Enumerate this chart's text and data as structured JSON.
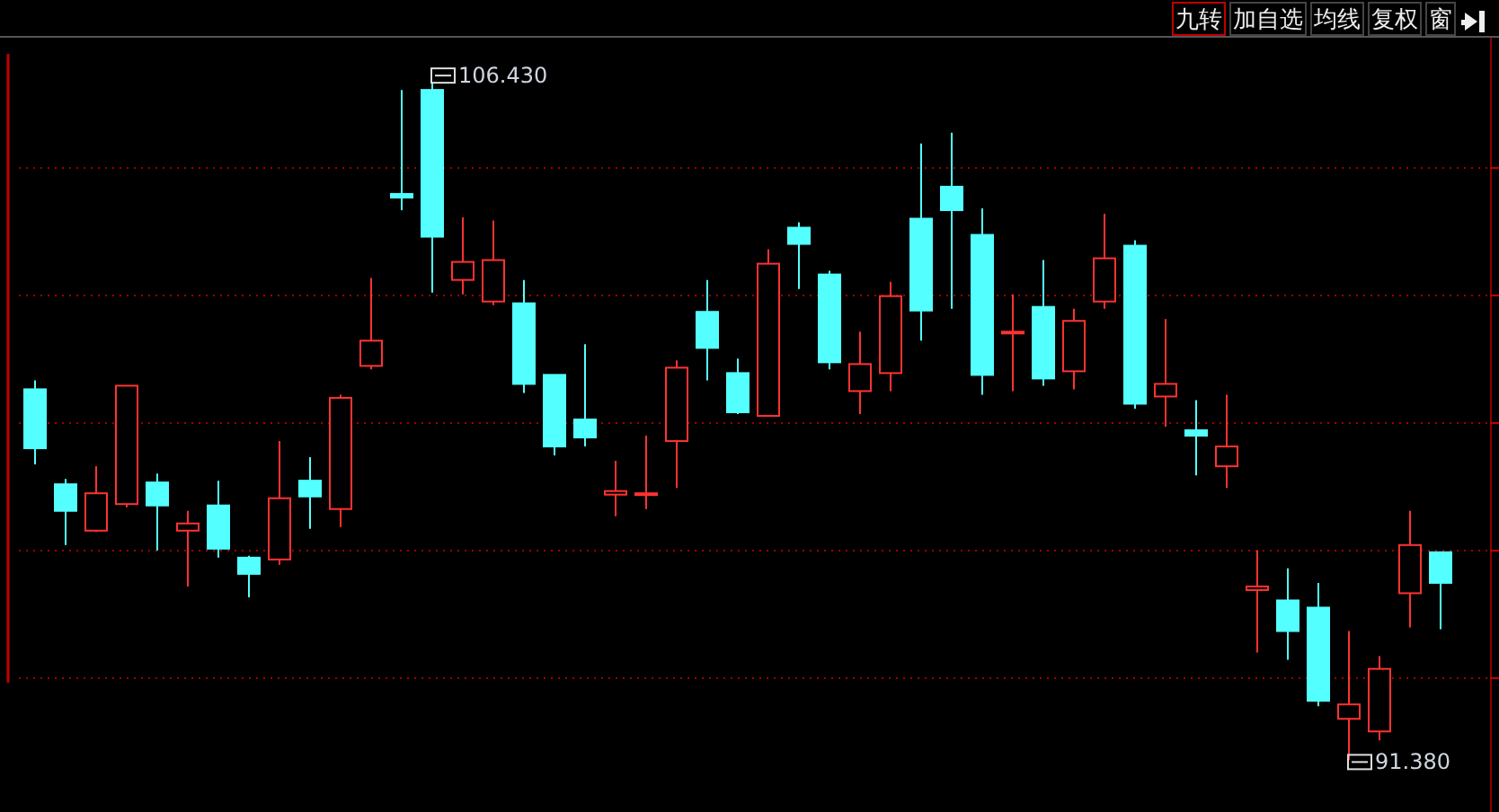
{
  "chart_data": {
    "type": "candlestick",
    "categories": [
      null,
      null,
      null,
      null,
      null,
      null,
      null,
      null,
      null,
      null,
      null,
      null,
      null,
      null,
      null,
      null,
      null,
      null,
      null,
      null,
      null,
      null,
      null,
      null,
      null,
      null,
      null,
      null,
      null,
      null,
      null,
      null,
      null,
      null,
      null,
      null,
      null,
      null,
      null,
      null,
      null,
      null,
      null,
      null,
      null,
      null,
      null
    ],
    "ohlc": [
      [
        99.62,
        99.82,
        97.95,
        98.31
      ],
      [
        97.51,
        97.63,
        96.16,
        96.92
      ],
      [
        96.48,
        97.91,
        96.45,
        97.31
      ],
      [
        97.07,
        99.7,
        97.0,
        99.7
      ],
      [
        97.55,
        97.75,
        96.04,
        97.04
      ],
      [
        96.48,
        96.92,
        95.24,
        96.64
      ],
      [
        97.04,
        97.59,
        95.88,
        96.08
      ],
      [
        95.88,
        95.92,
        95.0,
        95.52
      ],
      [
        95.84,
        98.47,
        95.72,
        97.2
      ],
      [
        97.59,
        98.11,
        96.52,
        97.24
      ],
      [
        96.96,
        99.5,
        96.56,
        99.43
      ],
      [
        100.14,
        102.09,
        100.06,
        100.7
      ],
      [
        103.96,
        106.27,
        103.6,
        103.88
      ],
      [
        106.27,
        106.43,
        101.77,
        103.01
      ],
      [
        102.05,
        103.44,
        101.73,
        102.45
      ],
      [
        101.57,
        103.37,
        101.49,
        102.49
      ],
      [
        101.53,
        102.05,
        99.54,
        99.74
      ],
      [
        99.94,
        99.94,
        98.15,
        98.35
      ],
      [
        98.95,
        100.62,
        98.35,
        98.55
      ],
      [
        97.28,
        98.03,
        96.8,
        97.36
      ],
      [
        97.28,
        98.59,
        96.96,
        97.31
      ],
      [
        98.47,
        100.26,
        97.43,
        100.1
      ],
      [
        101.34,
        102.05,
        99.82,
        100.54
      ],
      [
        99.98,
        100.3,
        99.07,
        99.11
      ],
      [
        99.03,
        102.73,
        99.03,
        102.41
      ],
      [
        103.21,
        103.33,
        101.85,
        102.85
      ],
      [
        102.17,
        102.25,
        100.06,
        100.22
      ],
      [
        99.58,
        100.9,
        99.07,
        100.18
      ],
      [
        99.98,
        102.01,
        99.58,
        101.69
      ],
      [
        103.41,
        105.08,
        100.7,
        101.37
      ],
      [
        104.12,
        105.32,
        101.41,
        103.6
      ],
      [
        103.05,
        103.64,
        99.5,
        99.94
      ],
      [
        100.9,
        101.73,
        99.58,
        100.9
      ],
      [
        101.45,
        102.49,
        99.7,
        99.86
      ],
      [
        100.02,
        101.41,
        99.62,
        101.14
      ],
      [
        101.57,
        103.52,
        101.41,
        102.53
      ],
      [
        102.81,
        102.93,
        99.19,
        99.3
      ],
      [
        99.46,
        101.18,
        98.79,
        99.74
      ],
      [
        98.71,
        99.38,
        97.71,
        98.59
      ],
      [
        97.91,
        99.5,
        97.43,
        98.35
      ],
      [
        95.16,
        96.04,
        93.77,
        95.24
      ],
      [
        94.93,
        95.64,
        93.61,
        94.25
      ],
      [
        94.77,
        95.32,
        92.58,
        92.7
      ],
      [
        92.3,
        94.25,
        91.38,
        92.62
      ],
      [
        92.02,
        93.69,
        91.82,
        93.41
      ],
      [
        95.09,
        96.92,
        94.33,
        96.16
      ],
      [
        96.0,
        96.0,
        94.29,
        95.32
      ]
    ],
    "colors": [
      "#54ffff",
      "#54ffff",
      "#ff3232",
      "#ff3232",
      "#54ffff",
      "#ff3232",
      "#54ffff",
      "#54ffff",
      "#ff3232",
      "#54ffff",
      "#ff3232",
      "#ff3232",
      "#54ffff",
      "#54ffff",
      "#ff3232",
      "#ff3232",
      "#54ffff",
      "#54ffff",
      "#54ffff",
      "#ff3232",
      "#ff3232",
      "#ff3232",
      "#54ffff",
      "#54ffff",
      "#ff3232",
      "#54ffff",
      "#54ffff",
      "#ff3232",
      "#ff3232",
      "#54ffff",
      "#54ffff",
      "#54ffff",
      "#ff3232",
      "#54ffff",
      "#ff3232",
      "#ff3232",
      "#54ffff",
      "#ff3232",
      "#54ffff",
      "#ff3232",
      "#ff3232",
      "#54ffff",
      "#54ffff",
      "#ff3232",
      "#ff3232",
      "#ff3232",
      "#54ffff"
    ],
    "ylim": [
      90.23,
      107.43
    ],
    "yticks": [
      {
        "value": 104.55,
        "label": null
      },
      {
        "value": 101.72,
        "label": null
      },
      {
        "value": 98.89,
        "label": null
      },
      {
        "value": 96.07,
        "label": null
      },
      {
        "value": 93.24,
        "label": null
      }
    ],
    "grid": "y",
    "annotations": [
      "106.430",
      "91.380",
      "九转",
      "加自选",
      "均线",
      "复权",
      "窗"
    ]
  }
}
